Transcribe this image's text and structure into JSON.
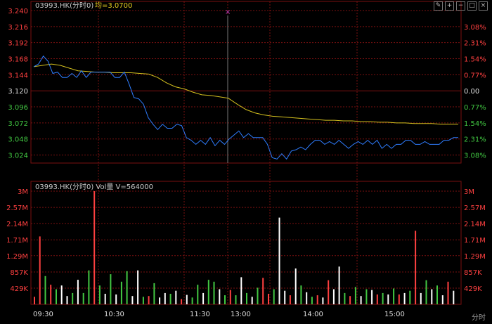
{
  "price_panel": {
    "symbol_label": "03993.HK(分时0)",
    "avg_label": "均=3.0700",
    "price_ticks": [
      "3.240",
      "3.216",
      "3.192",
      "3.168",
      "3.144",
      "3.120",
      "3.096",
      "3.072",
      "3.048",
      "3.024"
    ],
    "pct_ticks": [
      "3.08%",
      "2.31%",
      "1.54%",
      "0.77%",
      "0.00",
      "0.77%",
      "1.54%",
      "2.31%",
      "3.08%"
    ],
    "cursor_marker": "×"
  },
  "volume_panel": {
    "label": "03993.HK(分时0) Vol量 V=564000",
    "vol_ticks": [
      "3M",
      "2.57M",
      "2.14M",
      "1.71M",
      "1.29M",
      "857K",
      "429K"
    ]
  },
  "time_axis": {
    "labels": [
      "09:30",
      "10:30",
      "11:30",
      "13:00",
      "14:00",
      "15:00"
    ],
    "mode_label": "分时"
  },
  "toolbar": {
    "icons": [
      "edit-icon",
      "plus-icon",
      "minus-icon",
      "restore-icon",
      "close-icon"
    ],
    "glyphs": [
      "✎",
      "+",
      "−",
      "□",
      "×"
    ]
  },
  "colors": {
    "price_line": "#2f7dff",
    "avg_line": "#d4c01e",
    "up": "#ff4040",
    "down": "#42c842",
    "neutral": "#ffffff",
    "grid": "#7a1010"
  },
  "chart_data": {
    "type": "line",
    "title": "",
    "ylim": [
      3.012,
      3.24
    ],
    "prev_close": 3.12,
    "series": [
      {
        "values": [
          3.156,
          3.16,
          3.172,
          3.164,
          3.146,
          3.148,
          3.14,
          3.14,
          3.146,
          3.14,
          3.15,
          3.14,
          3.148,
          3.148,
          3.148,
          3.148,
          3.148,
          3.14,
          3.14,
          3.148,
          3.13,
          3.11,
          3.108,
          3.1,
          3.08,
          3.07,
          3.062,
          3.07,
          3.064,
          3.064,
          3.07,
          3.068,
          3.05,
          3.046,
          3.04,
          3.046,
          3.04,
          3.05,
          3.038,
          3.046,
          3.04,
          3.048,
          3.054,
          3.06,
          3.05,
          3.056,
          3.05,
          3.05,
          3.05,
          3.04,
          3.02,
          3.018,
          3.026,
          3.018,
          3.03,
          3.032,
          3.036,
          3.032,
          3.04,
          3.046,
          3.046,
          3.04,
          3.044,
          3.04,
          3.046,
          3.04,
          3.034,
          3.04,
          3.044,
          3.04,
          3.046,
          3.04,
          3.046,
          3.034,
          3.04,
          3.034,
          3.04,
          3.04,
          3.046,
          3.046,
          3.04,
          3.04,
          3.044,
          3.04,
          3.04,
          3.04,
          3.046,
          3.046,
          3.05,
          3.05
        ]
      },
      {
        "values": [
          3.156,
          3.158,
          3.16,
          3.158,
          3.154,
          3.15,
          3.149,
          3.148,
          3.148,
          3.147,
          3.147,
          3.147,
          3.146,
          3.145,
          3.14,
          3.132,
          3.126,
          3.123,
          3.118,
          3.114,
          3.113,
          3.111,
          3.109,
          3.1,
          3.092,
          3.087,
          3.084,
          3.082,
          3.081,
          3.08,
          3.079,
          3.078,
          3.077,
          3.076,
          3.076,
          3.075,
          3.075,
          3.074,
          3.074,
          3.073,
          3.073,
          3.072,
          3.072,
          3.071,
          3.071,
          3.071,
          3.07,
          3.07,
          3.07
        ]
      }
    ],
    "volume": {
      "ylim": [
        0,
        3000000
      ],
      "values": [
        200000,
        1800000,
        750000,
        520000,
        400000,
        500000,
        220000,
        300000,
        650000,
        300000,
        900000,
        3000000,
        500000,
        280000,
        800000,
        260000,
        600000,
        880000,
        220000,
        900000,
        200000,
        220000,
        560000,
        180000,
        300000,
        280000,
        360000,
        140000,
        250000,
        180000,
        520000,
        300000,
        650000,
        600000,
        400000,
        240000,
        380000,
        240000,
        720000,
        300000,
        200000,
        440000,
        700000,
        280000,
        400000,
        2300000,
        360000,
        240000,
        950000,
        500000,
        320000,
        200000,
        240000,
        180000,
        640000,
        400000,
        1000000,
        300000,
        220000,
        460000,
        220000,
        400000,
        380000,
        260000,
        300000,
        260000,
        420000,
        260000,
        300000,
        360000,
        1950000,
        300000,
        640000,
        400000,
        500000,
        240000,
        600000,
        360000
      ],
      "directions": [
        "up",
        "up",
        "down",
        "up",
        "down",
        "neutral",
        "neutral",
        "down",
        "neutral",
        "down",
        "down",
        "up",
        "down",
        "neutral",
        "down",
        "neutral",
        "down",
        "down",
        "neutral",
        "neutral",
        "down",
        "up",
        "down",
        "neutral",
        "neutral",
        "down",
        "neutral",
        "up",
        "neutral",
        "down",
        "down",
        "neutral",
        "down",
        "down",
        "neutral",
        "down",
        "up",
        "down",
        "neutral",
        "down",
        "neutral",
        "down",
        "up",
        "up",
        "down",
        "neutral",
        "neutral",
        "up",
        "neutral",
        "down",
        "neutral",
        "down",
        "up",
        "neutral",
        "up",
        "neutral",
        "neutral",
        "down",
        "up",
        "down",
        "neutral",
        "down",
        "neutral",
        "up",
        "down",
        "neutral",
        "down",
        "up",
        "neutral",
        "down",
        "up",
        "neutral",
        "down",
        "neutral",
        "down",
        "neutral",
        "up",
        "neutral"
      ]
    }
  }
}
